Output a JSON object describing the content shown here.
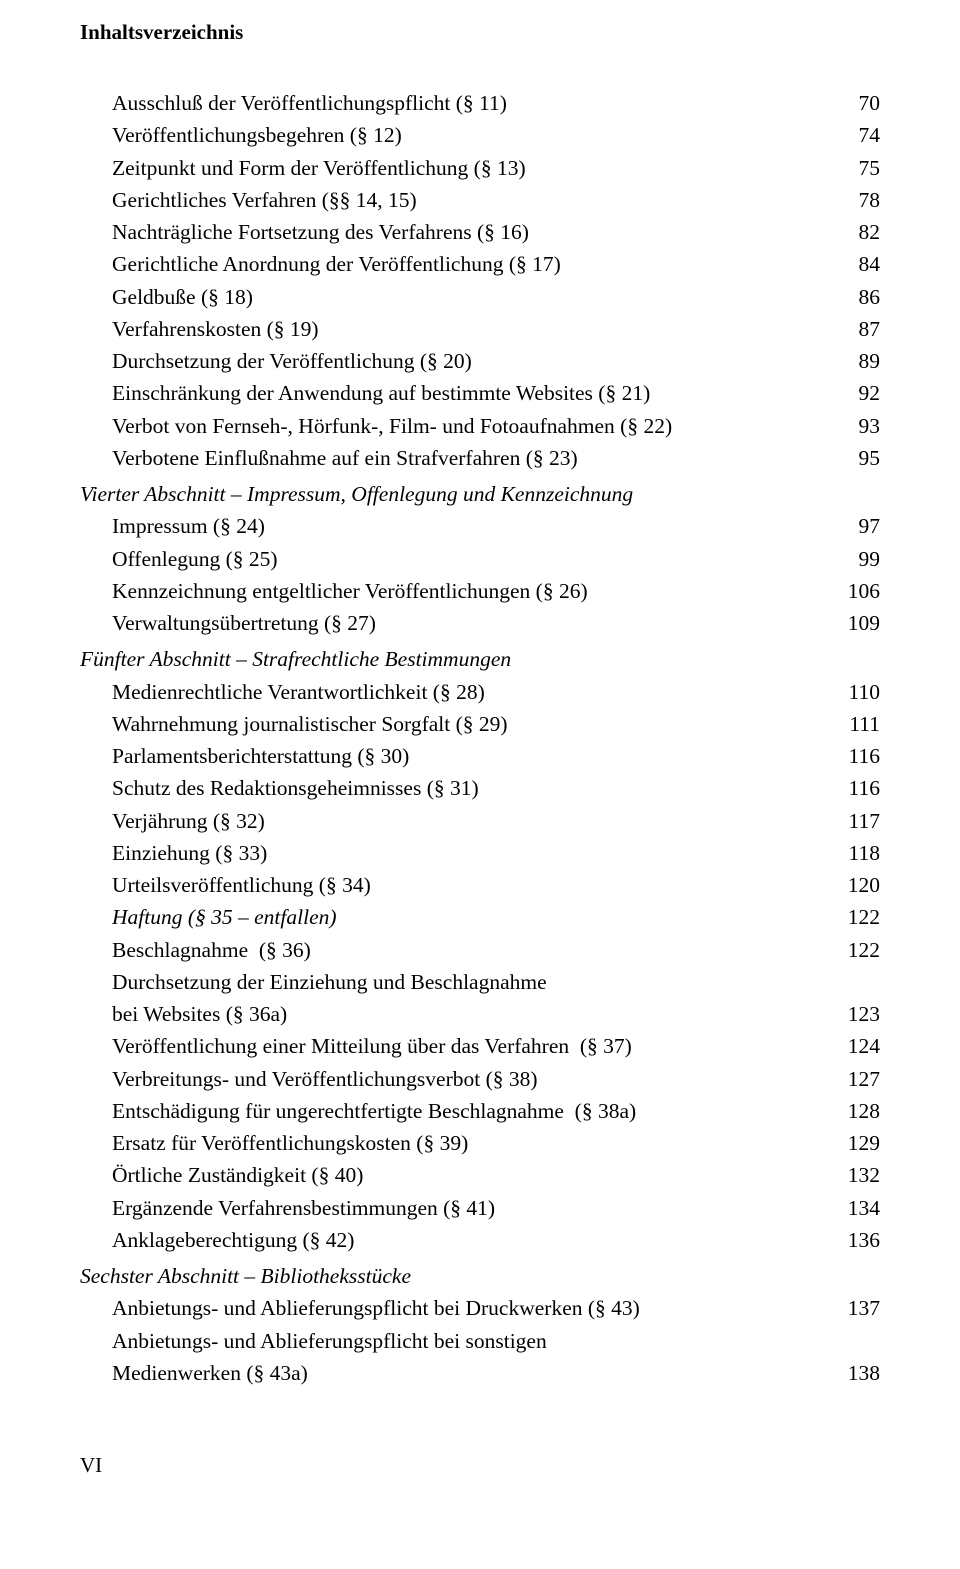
{
  "running_head": "Inhaltsverzeichnis",
  "folio": "VI",
  "entries": [
    {
      "type": "item",
      "label": "Ausschluß der Veröffentlichungspflicht (§ 11)",
      "page": "70",
      "indent": 1
    },
    {
      "type": "item",
      "label": "Veröffentlichungsbegehren (§ 12)",
      "page": "74",
      "indent": 1
    },
    {
      "type": "item",
      "label": "Zeitpunkt und Form der Veröffentlichung (§ 13)",
      "page": "75",
      "indent": 1
    },
    {
      "type": "item",
      "label": "Gerichtliches Verfahren (§§ 14, 15)",
      "page": "78",
      "indent": 1
    },
    {
      "type": "item",
      "label": "Nachträgliche Fortsetzung des Verfahrens (§ 16)",
      "page": "82",
      "indent": 1
    },
    {
      "type": "item",
      "label": "Gerichtliche Anordnung der Veröffentlichung (§ 17)",
      "page": "84",
      "indent": 1
    },
    {
      "type": "item",
      "label": "Geldbuße (§ 18)",
      "page": "86",
      "indent": 1
    },
    {
      "type": "item",
      "label": "Verfahrenskosten (§ 19)",
      "page": "87",
      "indent": 1
    },
    {
      "type": "item",
      "label": "Durchsetzung der Veröffentlichung (§ 20)",
      "page": "89",
      "indent": 1
    },
    {
      "type": "item",
      "label": "Einschränkung der Anwendung auf bestimmte Websites (§ 21)",
      "page": "92",
      "indent": 1
    },
    {
      "type": "item",
      "label": "Verbot von Fernseh-, Hörfunk-, Film- und Fotoaufnahmen (§ 22)",
      "page": "93",
      "indent": 1
    },
    {
      "type": "item",
      "label": "Verbotene Einflußnahme auf ein Strafverfahren (§ 23)",
      "page": "95",
      "indent": 1
    },
    {
      "type": "section",
      "label": "Vierter Abschnitt – Impressum, Offenlegung und Kennzeichnung"
    },
    {
      "type": "item",
      "label": "Impressum (§ 24)",
      "page": "97",
      "indent": 1
    },
    {
      "type": "item",
      "label": "Offenlegung (§ 25)",
      "page": "99",
      "indent": 1
    },
    {
      "type": "item",
      "label": "Kennzeichnung entgeltlicher Veröffentlichungen (§ 26)",
      "page": "106",
      "indent": 1
    },
    {
      "type": "item",
      "label": "Verwaltungsübertretung (§ 27)",
      "page": "109",
      "indent": 1
    },
    {
      "type": "section",
      "label": "Fünfter Abschnitt – Strafrechtliche Bestimmungen"
    },
    {
      "type": "item",
      "label": "Medienrechtliche Verantwortlichkeit (§ 28)",
      "page": "110",
      "indent": 1
    },
    {
      "type": "item",
      "label": "Wahrnehmung journalistischer Sorgfalt (§ 29)",
      "page": "111",
      "indent": 1
    },
    {
      "type": "item",
      "label": "Parlamentsberichterstattung (§ 30)",
      "page": "116",
      "indent": 1
    },
    {
      "type": "item",
      "label": "Schutz des Redaktionsgeheimnisses (§ 31)",
      "page": "116",
      "indent": 1
    },
    {
      "type": "item",
      "label": "Verjährung (§ 32)",
      "page": "117",
      "indent": 1
    },
    {
      "type": "item",
      "label": "Einziehung (§ 33)",
      "page": "118",
      "indent": 1
    },
    {
      "type": "item",
      "label": "Urteilsveröffentlichung (§ 34)",
      "page": "120",
      "indent": 1
    },
    {
      "type": "item",
      "label": "Haftung (§ 35 – entfallen)",
      "page": "122",
      "indent": 1,
      "italic_label": true
    },
    {
      "type": "item",
      "label": "Beschlagnahme  (§ 36)",
      "page": "122",
      "indent": 1
    },
    {
      "type": "multiline",
      "line1": "Durchsetzung der Einziehung und Beschlagnahme",
      "line2": "bei Websites (§ 36a)",
      "page": "123",
      "indent": 1
    },
    {
      "type": "item",
      "label": "Veröffentlichung einer Mitteilung über das Verfahren  (§ 37)",
      "page": "124",
      "indent": 1
    },
    {
      "type": "item",
      "label": "Verbreitungs- und Veröffentlichungsverbot (§ 38)",
      "page": "127",
      "indent": 1
    },
    {
      "type": "item",
      "label": "Entschädigung für ungerechtfertigte Beschlagnahme  (§ 38a)",
      "page": "128",
      "indent": 1
    },
    {
      "type": "item",
      "label": "Ersatz für Veröffentlichungskosten (§ 39)",
      "page": "129",
      "indent": 1
    },
    {
      "type": "item",
      "label": "Örtliche Zuständigkeit (§ 40)",
      "page": "132",
      "indent": 1
    },
    {
      "type": "item",
      "label": "Ergänzende Verfahrensbestimmungen (§ 41)",
      "page": "134",
      "indent": 1
    },
    {
      "type": "item",
      "label": "Anklageberechtigung (§ 42)",
      "page": "136",
      "indent": 1
    },
    {
      "type": "section",
      "label": "Sechster Abschnitt – Bibliotheksstücke"
    },
    {
      "type": "item",
      "label": "Anbietungs- und Ablieferungspflicht bei Druckwerken (§ 43)",
      "page": "137",
      "indent": 1
    },
    {
      "type": "multiline",
      "line1": "Anbietungs- und Ablieferungspflicht bei sonstigen",
      "line2": "Medienwerken (§ 43a)",
      "page": "138",
      "indent": 1
    }
  ]
}
